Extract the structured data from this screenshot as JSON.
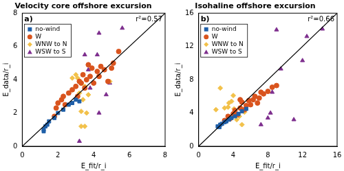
{
  "chart_data": [
    {
      "type": "scatter",
      "panel_label": "a)",
      "title": "Velocity core offshore excursion",
      "x_label": "E_fit/r_i",
      "y_label": "E_data/r_i",
      "annotation": "r²=0.57",
      "xlim": [
        0,
        8
      ],
      "xticks": [
        0,
        2,
        4,
        6,
        8
      ],
      "ylim": [
        0,
        8
      ],
      "yticks": [
        0,
        2,
        4,
        6,
        8
      ],
      "grid": false,
      "legend": "upper left",
      "reference_line": {
        "x": [
          0,
          8
        ],
        "values": [
          0,
          8
        ],
        "color": "#000000"
      },
      "series": [
        {
          "name": "no-wind",
          "color": "#1f5fa8",
          "marker": "square",
          "x": [
            1.2,
            1.2,
            1.3,
            1.4,
            1.5,
            1.8,
            2.0,
            2.3,
            2.6,
            2.8,
            3.0,
            3.2
          ],
          "values": [
            0.9,
            1.0,
            1.2,
            1.3,
            1.5,
            1.7,
            2.0,
            2.2,
            2.5,
            2.6,
            2.8,
            2.7
          ]
        },
        {
          "name": "W",
          "color": "#d9541e",
          "marker": "circle",
          "x": [
            1.8,
            1.9,
            2.0,
            2.2,
            2.3,
            2.4,
            2.6,
            2.8,
            3.0,
            3.1,
            3.3,
            3.4,
            3.5,
            3.6,
            3.8,
            3.9,
            4.0,
            4.2,
            4.3,
            4.4,
            4.6,
            4.8,
            5.0,
            5.1,
            5.4,
            3.7,
            3.2
          ],
          "values": [
            1.8,
            2.3,
            2.6,
            2.8,
            3.0,
            2.5,
            3.2,
            3.4,
            3.6,
            3.0,
            3.8,
            4.3,
            3.5,
            4.0,
            4.2,
            4.7,
            3.8,
            4.5,
            4.2,
            4.8,
            4.6,
            3.9,
            4.7,
            5.0,
            5.7,
            4.9,
            3.9
          ]
        },
        {
          "name": "WNW to N",
          "color": "#f2c14a",
          "marker": "diamond",
          "x": [
            2.8,
            3.0,
            3.1,
            3.3,
            3.5,
            3.3,
            3.6,
            3.4,
            3.2,
            3.7,
            3.5,
            4.9
          ],
          "values": [
            4.1,
            4.3,
            4.1,
            1.2,
            1.2,
            2.1,
            2.0,
            2.8,
            3.2,
            3.1,
            3.6,
            3.9
          ]
        },
        {
          "name": "WSW to S",
          "color": "#7e2f8e",
          "marker": "triangle",
          "x": [
            3.2,
            3.5,
            3.7,
            3.8,
            4.2,
            4.3,
            4.7,
            4.9,
            5.6,
            4.3
          ],
          "values": [
            0.3,
            5.5,
            4.6,
            3.5,
            5.5,
            6.8,
            3.1,
            3.8,
            7.1,
            2.0
          ]
        }
      ]
    },
    {
      "type": "scatter",
      "panel_label": "b)",
      "title": "Isohaline offshore excursion",
      "x_label": "E_fit/r_i",
      "y_label": "E_data/r_i",
      "annotation": "r²=0.66",
      "xlim": [
        0,
        16
      ],
      "xticks": [
        0,
        4,
        8,
        12,
        16
      ],
      "ylim": [
        0,
        16
      ],
      "yticks": [
        0,
        4,
        8,
        12,
        16
      ],
      "grid": false,
      "legend": "upper left",
      "reference_line": {
        "x": [
          0,
          16
        ],
        "values": [
          0,
          16
        ],
        "color": "#000000"
      },
      "series": [
        {
          "name": "no-wind",
          "color": "#1f5fa8",
          "marker": "square",
          "x": [
            2.2,
            2.4,
            2.5,
            2.7,
            3.0,
            3.2,
            3.5,
            3.8,
            4.2,
            4.6,
            5.0,
            5.5
          ],
          "values": [
            2.4,
            2.3,
            2.6,
            2.7,
            2.9,
            3.0,
            3.2,
            3.4,
            3.6,
            3.9,
            4.2,
            4.5
          ]
        },
        {
          "name": "W",
          "color": "#d9541e",
          "marker": "circle",
          "x": [
            3.0,
            3.4,
            3.6,
            4.0,
            4.2,
            4.5,
            4.8,
            5.0,
            5.3,
            5.5,
            5.8,
            6.0,
            6.3,
            6.5,
            7.0,
            7.2,
            7.5,
            8.0,
            8.5,
            9.0,
            6.8,
            4.8
          ],
          "values": [
            3.1,
            3.6,
            3.3,
            3.9,
            4.3,
            3.8,
            4.6,
            5.3,
            4.4,
            4.9,
            5.5,
            5.0,
            5.6,
            6.0,
            5.8,
            6.5,
            6.3,
            6.6,
            7.1,
            7.3,
            5.2,
            5.6
          ]
        },
        {
          "name": "WNW to N",
          "color": "#f2c14a",
          "marker": "diamond",
          "x": [
            2.0,
            2.5,
            3.0,
            3.5,
            3.8,
            4.1,
            4.4,
            4.7,
            5.0,
            5.3,
            3.4,
            4.0
          ],
          "values": [
            4.4,
            7.0,
            4.6,
            5.2,
            5.4,
            4.5,
            3.2,
            3.6,
            2.6,
            4.1,
            4.7,
            6.1
          ]
        },
        {
          "name": "WSW to S",
          "color": "#7e2f8e",
          "marker": "triangle",
          "x": [
            7.2,
            8.0,
            8.5,
            9.0,
            9.5,
            11.0,
            12.0,
            12.5,
            14.3,
            8.3
          ],
          "values": [
            2.6,
            3.4,
            6.5,
            14.0,
            9.3,
            3.2,
            10.3,
            13.2,
            14.1,
            4.0
          ]
        }
      ]
    }
  ]
}
